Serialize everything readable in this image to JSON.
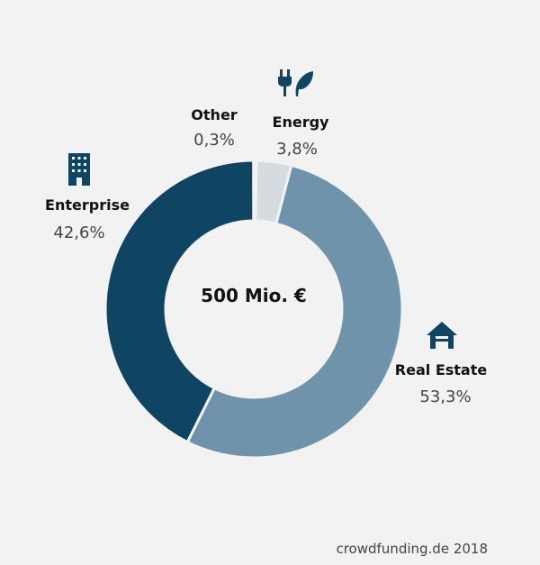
{
  "chart_data": {
    "type": "pie",
    "donut": true,
    "center_label": "500 Mio. €",
    "slices": [
      {
        "name": "Energy",
        "value": 3.8,
        "label": "3,8%",
        "color": "#d5dbdf",
        "icon": "plug-leaf-icon"
      },
      {
        "name": "Real Estate",
        "value": 53.3,
        "label": "53,3%",
        "color": "#6f93aa",
        "icon": "house-icon"
      },
      {
        "name": "Enterprise",
        "value": 42.6,
        "label": "42,6%",
        "color": "#0f4462",
        "icon": "building-icon"
      },
      {
        "name": "Other",
        "value": 0.3,
        "label": "0,3%",
        "color": "#f2f2f2",
        "icon": ""
      }
    ],
    "source": "crowdfunding.de 2018",
    "icon_color": "#0f4462"
  }
}
